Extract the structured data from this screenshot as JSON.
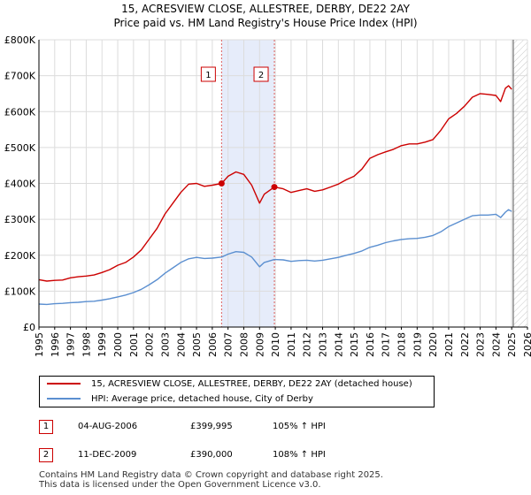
{
  "chart_data": {
    "type": "line",
    "title": "15, ACRESVIEW CLOSE, ALLESTREE, DERBY, DE22 2AY",
    "subtitle": "Price paid vs. HM Land Registry's House Price Index (HPI)",
    "xlim": [
      1995,
      2026
    ],
    "ylim": [
      0,
      800000
    ],
    "x_ticks": [
      1995,
      1996,
      1997,
      1998,
      1999,
      2000,
      2001,
      2002,
      2003,
      2004,
      2005,
      2006,
      2007,
      2008,
      2009,
      2010,
      2011,
      2012,
      2013,
      2014,
      2015,
      2016,
      2017,
      2018,
      2019,
      2020,
      2021,
      2022,
      2023,
      2024,
      2025,
      2026
    ],
    "y_ticks": [
      {
        "value": 0,
        "label": "£0"
      },
      {
        "value": 100000,
        "label": "£100K"
      },
      {
        "value": 200000,
        "label": "£200K"
      },
      {
        "value": 300000,
        "label": "£300K"
      },
      {
        "value": 400000,
        "label": "£400K"
      },
      {
        "value": 500000,
        "label": "£500K"
      },
      {
        "value": 600000,
        "label": "£600K"
      },
      {
        "value": 700000,
        "label": "£700K"
      },
      {
        "value": 800000,
        "label": "£800K"
      }
    ],
    "grid": true,
    "highlight_span": [
      2006.59,
      2009.94
    ],
    "future_from": 2025.1,
    "series": [
      {
        "name": "15, ACRESVIEW CLOSE, ALLESTREE, DERBY, DE22 2AY (detached house)",
        "color": "#cc0000",
        "x": [
          1995,
          1995.5,
          1996,
          1996.5,
          1997,
          1997.5,
          1998,
          1998.5,
          1999,
          1999.5,
          2000,
          2000.5,
          2001,
          2001.5,
          2002,
          2002.5,
          2003,
          2003.5,
          2004,
          2004.5,
          2005,
          2005.5,
          2006,
          2006.59,
          2007,
          2007.5,
          2008,
          2008.5,
          2009,
          2009.3,
          2009.94,
          2010.5,
          2011,
          2011.5,
          2012,
          2012.5,
          2013,
          2013.5,
          2014,
          2014.5,
          2015,
          2015.5,
          2016,
          2016.5,
          2017,
          2017.5,
          2018,
          2018.5,
          2019,
          2019.5,
          2020,
          2020.5,
          2021,
          2021.5,
          2022,
          2022.5,
          2023,
          2023.5,
          2024,
          2024.3,
          2024.6,
          2024.8,
          2025
        ],
        "y": [
          132000,
          128000,
          130000,
          131000,
          137000,
          140000,
          142000,
          145000,
          152000,
          160000,
          172000,
          180000,
          195000,
          215000,
          245000,
          275000,
          315000,
          345000,
          375000,
          398000,
          400000,
          392000,
          395000,
          399995,
          420000,
          432000,
          425000,
          395000,
          345000,
          370000,
          390000,
          385000,
          375000,
          380000,
          385000,
          378000,
          382000,
          390000,
          398000,
          410000,
          420000,
          440000,
          470000,
          480000,
          488000,
          495000,
          505000,
          510000,
          510000,
          515000,
          522000,
          548000,
          580000,
          595000,
          615000,
          640000,
          650000,
          648000,
          645000,
          628000,
          665000,
          672000,
          662000
        ]
      },
      {
        "name": "HPI: Average price, detached house, City of Derby",
        "color": "#5b8fd0",
        "x": [
          1995,
          1995.5,
          1996,
          1996.5,
          1997,
          1997.5,
          1998,
          1998.5,
          1999,
          1999.5,
          2000,
          2000.5,
          2001,
          2001.5,
          2002,
          2002.5,
          2003,
          2003.5,
          2004,
          2004.5,
          2005,
          2005.5,
          2006,
          2006.59,
          2007,
          2007.5,
          2008,
          2008.5,
          2009,
          2009.3,
          2009.94,
          2010.5,
          2011,
          2011.5,
          2012,
          2012.5,
          2013,
          2013.5,
          2014,
          2014.5,
          2015,
          2015.5,
          2016,
          2016.5,
          2017,
          2017.5,
          2018,
          2018.5,
          2019,
          2019.5,
          2020,
          2020.5,
          2021,
          2021.5,
          2022,
          2022.5,
          2023,
          2023.5,
          2024,
          2024.3,
          2024.6,
          2024.8,
          2025
        ],
        "y": [
          64000,
          63000,
          65000,
          66000,
          68000,
          69000,
          71000,
          72000,
          75000,
          79000,
          84000,
          89000,
          96000,
          105000,
          118000,
          132000,
          150000,
          165000,
          180000,
          190000,
          194000,
          191000,
          192000,
          195000,
          203000,
          210000,
          208000,
          195000,
          168000,
          180000,
          188000,
          187000,
          183000,
          185000,
          186000,
          184000,
          186000,
          190000,
          194000,
          200000,
          205000,
          212000,
          222000,
          228000,
          235000,
          240000,
          244000,
          246000,
          247000,
          250000,
          255000,
          265000,
          280000,
          290000,
          300000,
          310000,
          312000,
          312000,
          314000,
          305000,
          320000,
          327000,
          322000
        ]
      }
    ],
    "transactions": [
      {
        "id": "1",
        "date": "04-AUG-2006",
        "price": "£399,995",
        "hpi": "105% ↑ HPI",
        "x": 2006.59,
        "y": 399995
      },
      {
        "id": "2",
        "date": "11-DEC-2009",
        "price": "£390,000",
        "hpi": "108% ↑ HPI",
        "x": 2009.94,
        "y": 390000
      }
    ]
  },
  "footer": {
    "line1": "Contains HM Land Registry data © Crown copyright and database right 2025.",
    "line2": "This data is licensed under the Open Government Licence v3.0."
  }
}
